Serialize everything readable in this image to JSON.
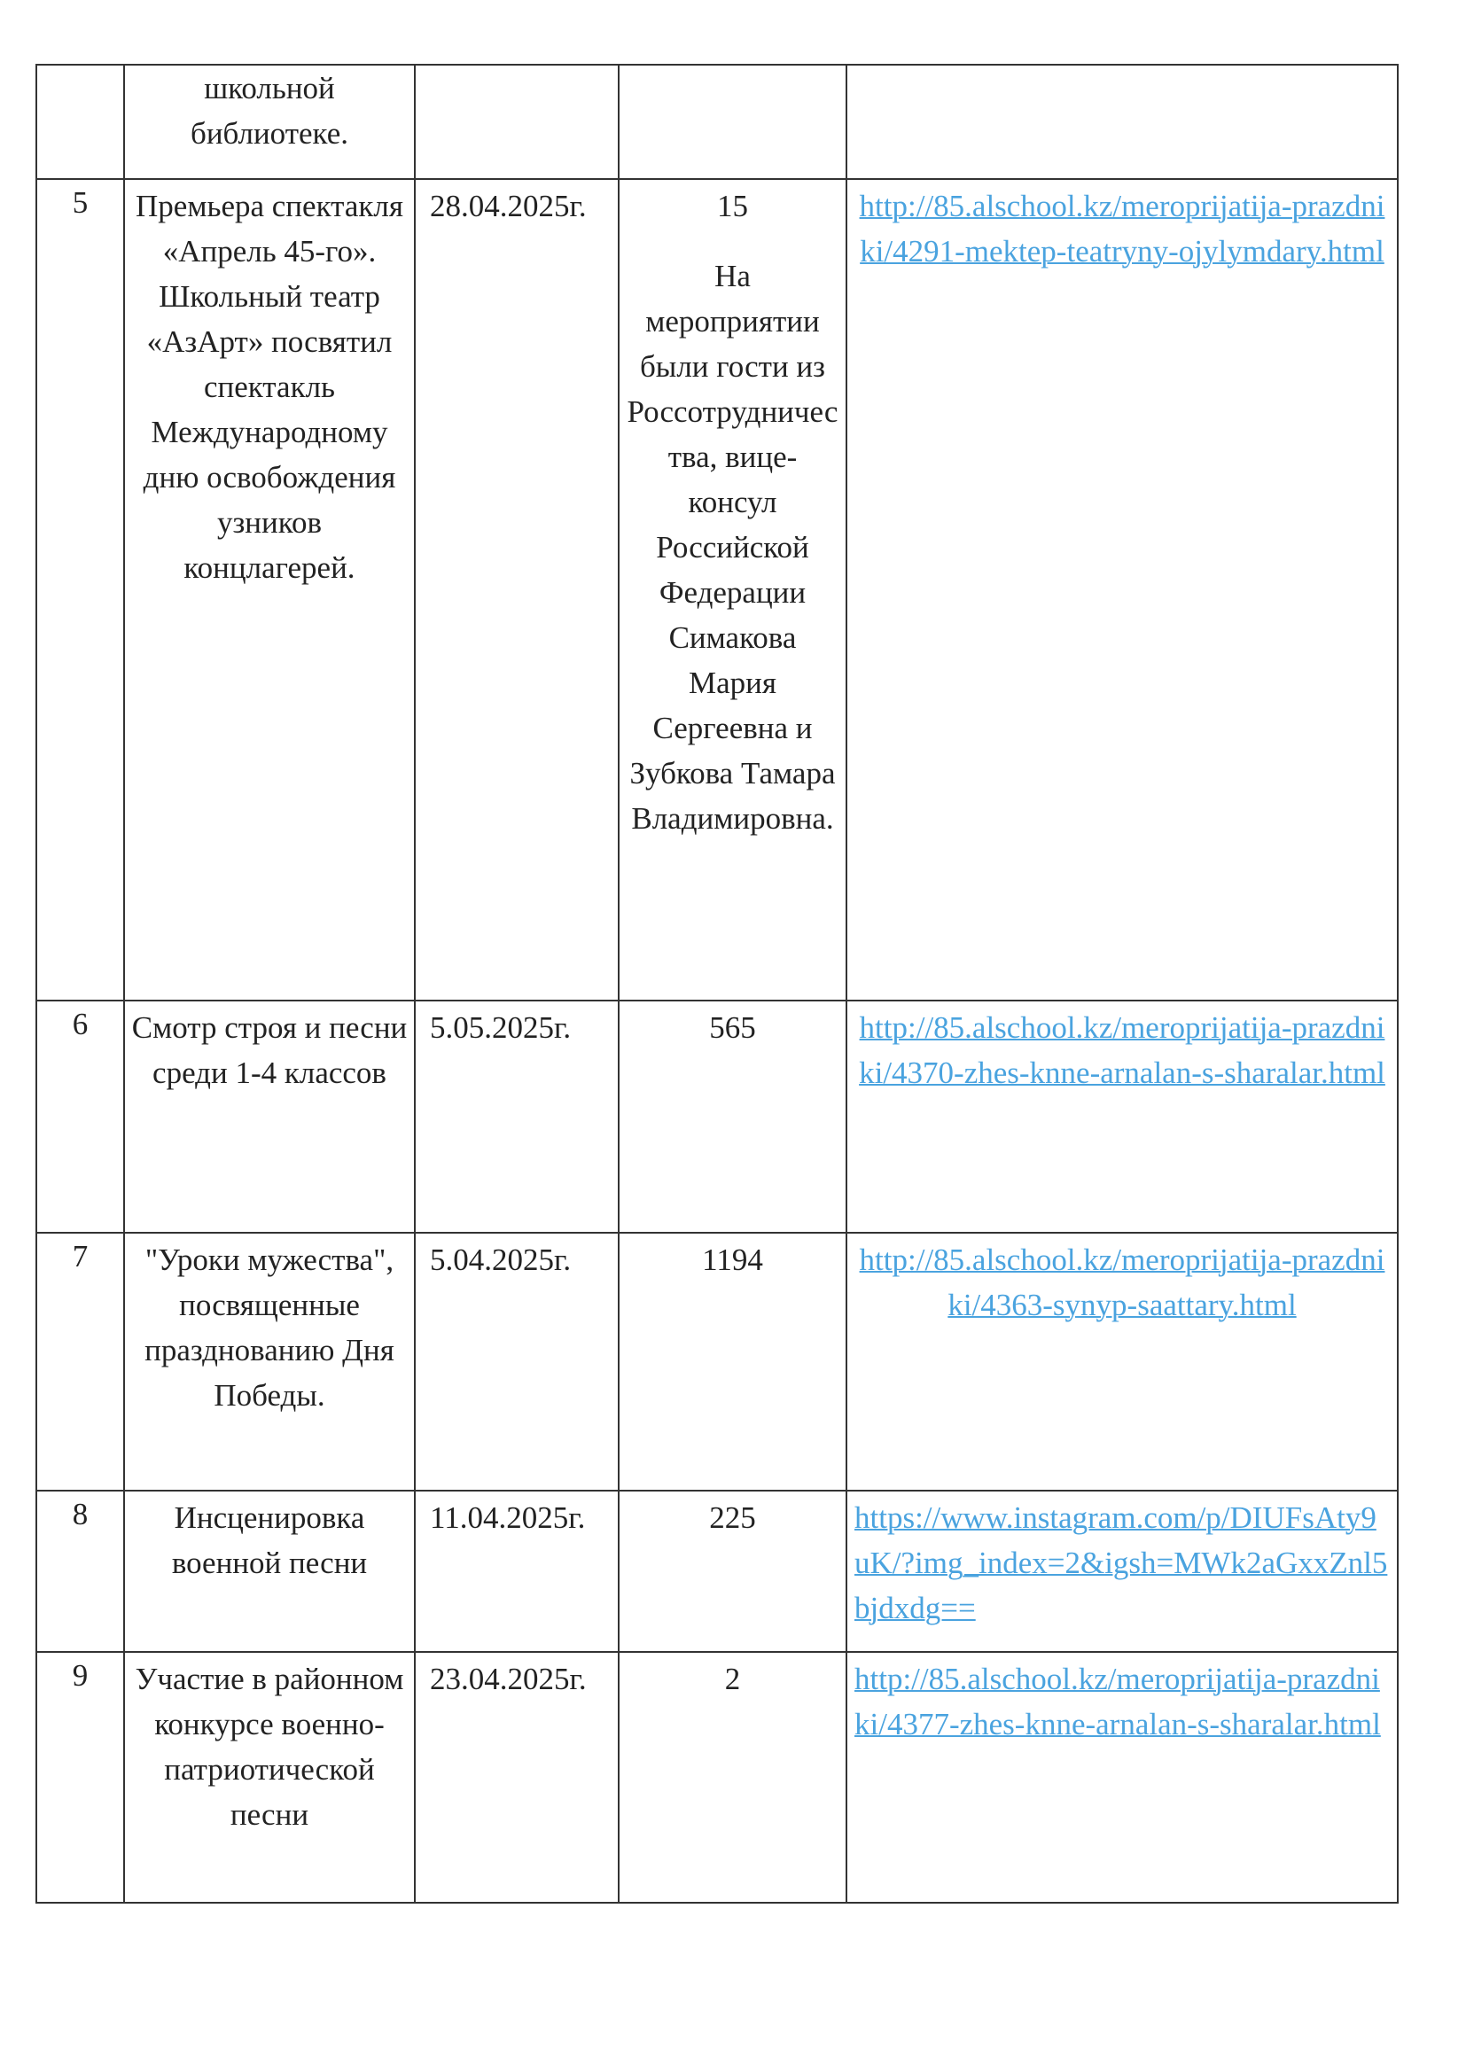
{
  "rows": [
    {
      "num": "",
      "event": "школьной библиотеке.",
      "date": "",
      "count": "",
      "count_note": "",
      "link": ""
    },
    {
      "num": "5",
      "event": "Премьера спектакля «Апрель 45-го». Школьный театр «АзАрт» посвятил спектакль Международному дню освобождения узников концлагерей.",
      "date": "28.04.2025г.",
      "count": "15",
      "count_note": "На мероприятии были гости из Россотрудничества, вице-консул Российской Федерации Симакова Мария Сергеевна и Зубкова Тамара Владимировна.",
      "link": "http://85.alschool.kz/meroprijatija-prazdniki/4291-mektep-teatryny-ojylymdary.html"
    },
    {
      "num": "6",
      "event": "Смотр строя и песни среди 1-4 классов",
      "date": "5.05.2025г.",
      "count": "565",
      "count_note": "",
      "link": "http://85.alschool.kz/meroprijatija-prazdniki/4370-zhes-knne-arnalan-s-sharalar.html"
    },
    {
      "num": "7",
      "event": "\"Уроки мужества\", посвященные празднованию Дня Победы.",
      "date": "5.04.2025г.",
      "count": "1194",
      "count_note": "",
      "link": "http://85.alschool.kz/meroprijatija-prazdniki/4363-synyp-saattary.html"
    },
    {
      "num": "8",
      "event": "Инсценировка военной песни",
      "date": "11.04.2025г.",
      "count": "225",
      "count_note": "",
      "link": "https://www.instagram.com/p/DIUFsAty9uK/?img_index=2&igsh=MWk2aGxxZnl5bjdxdg=="
    },
    {
      "num": "9",
      "event": "Участие в районном конкурсе военно-патриотической песни",
      "date": "23.04.2025г.",
      "count": "2",
      "count_note": "",
      "link": "http://85.alschool.kz/meroprijatija-prazdniki/4377-zhes-knne-arnalan-s-sharalar.html"
    }
  ],
  "colors": {
    "link": "#4aa3df",
    "border": "#333333"
  }
}
